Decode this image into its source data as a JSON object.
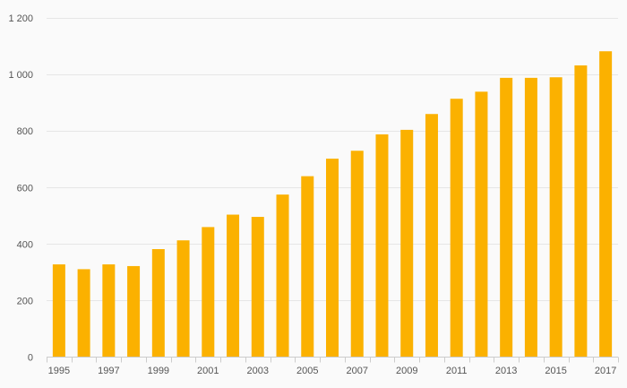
{
  "chart_data": {
    "type": "bar",
    "title": "",
    "xlabel": "",
    "ylabel": "",
    "categories": [
      "1995",
      "1996",
      "1997",
      "1998",
      "1999",
      "2000",
      "2001",
      "2002",
      "2003",
      "2004",
      "2005",
      "2006",
      "2007",
      "2008",
      "2009",
      "2010",
      "2011",
      "2012",
      "2013",
      "2014",
      "2015",
      "2016",
      "2017"
    ],
    "x_tick_labels": [
      "1995",
      "1997",
      "1999",
      "2001",
      "2003",
      "2005",
      "2007",
      "2009",
      "2011",
      "2013",
      "2015",
      "2017"
    ],
    "series": [
      {
        "values": [
          328,
          311,
          328,
          322,
          382,
          413,
          460,
          504,
          496,
          575,
          640,
          702,
          730,
          788,
          804,
          860,
          914,
          939,
          988,
          988,
          990,
          1032,
          1082
        ]
      }
    ],
    "ylim": [
      0,
      1200
    ],
    "y_ticks": [
      0,
      200,
      400,
      600,
      800,
      1000,
      1200
    ],
    "y_tick_labels": [
      "0",
      "200",
      "400",
      "600",
      "800",
      "1 000",
      "1 200"
    ],
    "grid": true,
    "legend": "none",
    "colors": {
      "bar": "#fbb100",
      "grid": "#e6e6e6",
      "axis": "#cccccc",
      "background": "#fafafa"
    }
  }
}
